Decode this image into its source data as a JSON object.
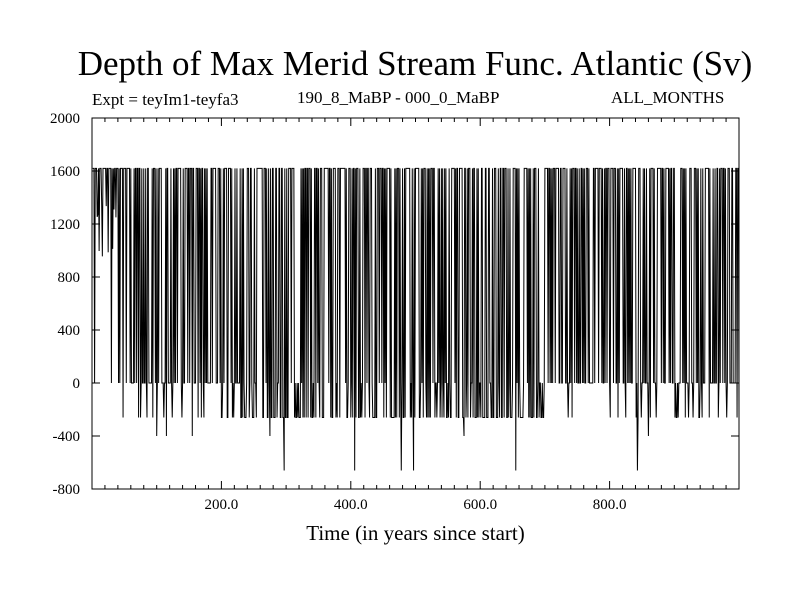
{
  "chart_data": {
    "type": "line",
    "title": "Depth of Max Merid Stream Func. Atlantic (Sv)",
    "subtitle_left": "Expt = teyIm1-teyfa3",
    "subtitle_center": "190_8_MaBP - 000_0_MaBP",
    "subtitle_right": "ALL_MONTHS",
    "xlabel": "Time (in years since start)",
    "ylabel": "",
    "xlim": [
      0,
      1000
    ],
    "ylim": [
      -800,
      2000
    ],
    "x_ticks": [
      200,
      400,
      600,
      800
    ],
    "x_tick_labels": [
      "200.0",
      "400.0",
      "600.0",
      "800.0"
    ],
    "y_ticks": [
      -800,
      -400,
      0,
      400,
      800,
      1200,
      1600,
      2000
    ],
    "y_tick_labels": [
      "-800",
      "-400",
      "0",
      "400",
      "800",
      "1200",
      "1600",
      "2000"
    ],
    "grid": false,
    "series": [
      {
        "color": "#000000",
        "x_start": 1,
        "x_step": 1,
        "typical_levels": [
          1620,
          0,
          -260
        ],
        "deep_minima": [
          {
            "x": 297,
            "y": -660
          },
          {
            "x": 406,
            "y": -660
          },
          {
            "x": 478,
            "y": -660
          },
          {
            "x": 497,
            "y": -660
          },
          {
            "x": 655,
            "y": -660
          },
          {
            "x": 843,
            "y": -660
          }
        ],
        "moderate_minima": [
          {
            "x": 100,
            "y": -400
          },
          {
            "x": 115,
            "y": -400
          },
          {
            "x": 155,
            "y": -400
          },
          {
            "x": 275,
            "y": -400
          },
          {
            "x": 575,
            "y": -400
          },
          {
            "x": 860,
            "y": -400
          }
        ]
      }
    ]
  }
}
